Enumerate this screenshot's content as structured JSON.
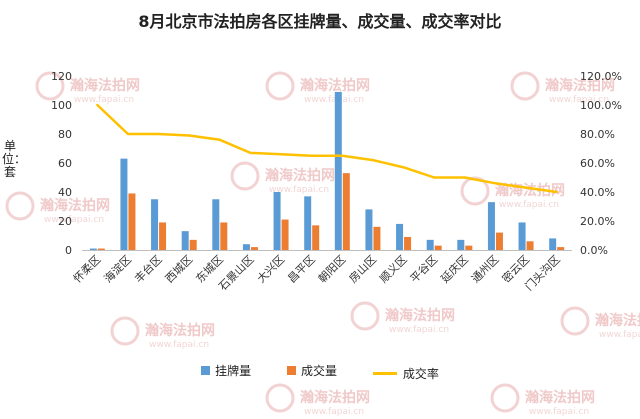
{
  "chart_data": {
    "type": "bar",
    "title": "8月北京市法拍房各区挂牌量、成交量、成交率对比",
    "ylabel": "单位：套",
    "ylim": [
      0,
      120
    ],
    "yticks": [
      0,
      20,
      40,
      60,
      80,
      100,
      120
    ],
    "y2lim": [
      0,
      1.2
    ],
    "y2ticks": [
      "0.0%",
      "20.0%",
      "40.0%",
      "60.0%",
      "80.0%",
      "100.0%",
      "120.0%"
    ],
    "categories": [
      "怀柔区",
      "海淀区",
      "丰台区",
      "西城区",
      "东城区",
      "石景山区",
      "大兴区",
      "昌平区",
      "朝阳区",
      "房山区",
      "顺义区",
      "平谷区",
      "延庆区",
      "通州区",
      "密云区",
      "门头沟区"
    ],
    "series": [
      {
        "name": "挂牌量",
        "type": "bar",
        "axis": "left",
        "color": "#5b9bd5",
        "values": [
          1,
          63,
          35,
          13,
          35,
          4,
          40,
          37,
          109,
          28,
          18,
          7,
          7,
          33,
          19,
          8
        ]
      },
      {
        "name": "成交量",
        "type": "bar",
        "axis": "left",
        "color": "#ed7d31",
        "values": [
          1,
          39,
          19,
          7,
          19,
          2,
          21,
          17,
          53,
          16,
          9,
          3,
          3,
          12,
          6,
          2
        ]
      },
      {
        "name": "成交率",
        "type": "line",
        "axis": "right",
        "color": "#ffc000",
        "values": [
          1.0,
          0.8,
          0.8,
          0.79,
          0.76,
          0.67,
          0.66,
          0.65,
          0.65,
          0.62,
          0.57,
          0.5,
          0.5,
          0.46,
          0.43,
          0.4
        ]
      }
    ],
    "legend_position": "bottom",
    "grid": false
  },
  "watermark": {
    "text": "瀚海法拍网",
    "url": "www.fapai.cn"
  }
}
